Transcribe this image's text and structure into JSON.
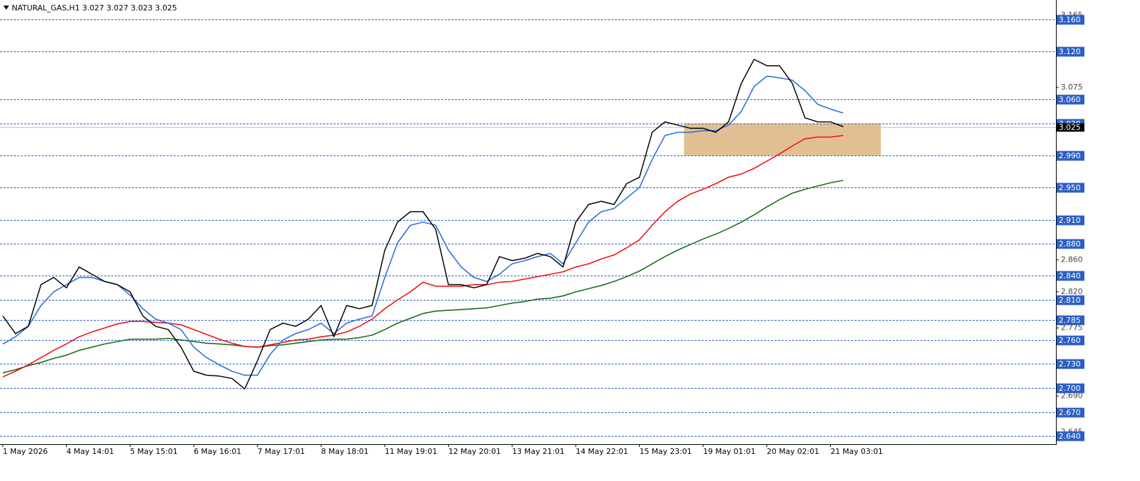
{
  "chart_data": {
    "type": "line",
    "title": "NATURAL_GAS,H1  3.027 3.027 3.023 3.025",
    "categories": [
      "1 May 2026",
      null,
      null,
      null,
      null,
      "4 May 14:01",
      null,
      null,
      null,
      null,
      "5 May 15:01",
      null,
      null,
      null,
      null,
      "6 May 16:01",
      null,
      null,
      null,
      null,
      "7 May 17:01",
      null,
      null,
      null,
      null,
      "8 May 18:01",
      null,
      null,
      null,
      null,
      "11 May 19:01",
      null,
      null,
      null,
      null,
      "12 May 20:01",
      null,
      null,
      null,
      null,
      "13 May 21:01",
      null,
      null,
      null,
      null,
      "14 May 22:01",
      null,
      null,
      null,
      null,
      "15 May 23:01",
      null,
      null,
      null,
      null,
      "19 May 01:01",
      null,
      null,
      null,
      null,
      "20 May 02:01",
      null,
      null,
      null,
      null,
      "21 May 03:01",
      null
    ],
    "series": [
      {
        "color": "#000000",
        "values": [
          2.79,
          2.768,
          2.777,
          2.829,
          2.838,
          2.825,
          2.851,
          2.842,
          2.833,
          2.829,
          2.82,
          2.79,
          2.777,
          2.773,
          2.751,
          2.721,
          2.716,
          2.715,
          2.712,
          2.699,
          2.734,
          2.773,
          2.781,
          2.777,
          2.786,
          2.803,
          2.764,
          2.803,
          2.799,
          2.803,
          2.872,
          2.907,
          2.92,
          2.92,
          2.898,
          2.829,
          2.829,
          2.825,
          2.829,
          2.864,
          2.859,
          2.862,
          2.868,
          2.864,
          2.851,
          2.907,
          2.929,
          2.933,
          2.929,
          2.955,
          2.963,
          3.019,
          3.032,
          3.028,
          3.024,
          3.024,
          3.019,
          3.032,
          3.08,
          3.11,
          3.102,
          3.102,
          3.08,
          3.037,
          3.032,
          3.032,
          3.026
        ]
      },
      {
        "color": "#2f6fdc",
        "values": [
          2.755,
          2.764,
          2.777,
          2.803,
          2.82,
          2.829,
          2.838,
          2.838,
          2.833,
          2.829,
          2.816,
          2.799,
          2.786,
          2.781,
          2.773,
          2.751,
          2.738,
          2.729,
          2.721,
          2.716,
          2.716,
          2.742,
          2.76,
          2.768,
          2.773,
          2.781,
          2.768,
          2.781,
          2.786,
          2.79,
          2.838,
          2.881,
          2.903,
          2.907,
          2.903,
          2.872,
          2.851,
          2.838,
          2.833,
          2.842,
          2.855,
          2.859,
          2.864,
          2.868,
          2.855,
          2.881,
          2.907,
          2.92,
          2.924,
          2.937,
          2.95,
          2.985,
          3.015,
          3.019,
          3.019,
          3.021,
          3.021,
          3.028,
          3.045,
          3.076,
          3.089,
          3.087,
          3.084,
          3.071,
          3.054,
          3.048,
          3.043
        ]
      },
      {
        "color": "#ee1111",
        "values": [
          2.714,
          2.721,
          2.729,
          2.738,
          2.747,
          2.755,
          2.764,
          2.77,
          2.775,
          2.78,
          2.783,
          2.783,
          2.782,
          2.781,
          2.779,
          2.773,
          2.767,
          2.761,
          2.756,
          2.752,
          2.751,
          2.754,
          2.757,
          2.76,
          2.761,
          2.764,
          2.766,
          2.77,
          2.777,
          2.786,
          2.799,
          2.81,
          2.82,
          2.832,
          2.827,
          2.827,
          2.827,
          2.829,
          2.829,
          2.832,
          2.833,
          2.836,
          2.839,
          2.842,
          2.845,
          2.851,
          2.855,
          2.861,
          2.866,
          2.875,
          2.885,
          2.903,
          2.92,
          2.933,
          2.942,
          2.948,
          2.955,
          2.963,
          2.967,
          2.974,
          2.983,
          2.992,
          3.002,
          3.011,
          3.013,
          3.013,
          3.015
        ]
      },
      {
        "color": "#1a6b1a",
        "values": [
          2.719,
          2.723,
          2.728,
          2.732,
          2.737,
          2.741,
          2.747,
          2.751,
          2.755,
          2.758,
          2.761,
          2.761,
          2.761,
          2.762,
          2.76,
          2.758,
          2.756,
          2.755,
          2.754,
          2.752,
          2.751,
          2.753,
          2.754,
          2.756,
          2.758,
          2.76,
          2.761,
          2.761,
          2.763,
          2.766,
          2.773,
          2.781,
          2.787,
          2.793,
          2.796,
          2.797,
          2.798,
          2.799,
          2.8,
          2.803,
          2.806,
          2.808,
          2.811,
          2.812,
          2.815,
          2.82,
          2.824,
          2.828,
          2.833,
          2.839,
          2.846,
          2.855,
          2.864,
          2.872,
          2.879,
          2.886,
          2.892,
          2.899,
          2.907,
          2.916,
          2.926,
          2.935,
          2.943,
          2.948,
          2.952,
          2.956,
          2.959
        ]
      }
    ],
    "ylim": [
      2.63,
      3.184
    ],
    "yticks": [
      3.165,
      3.075,
      {
        "value": 2.86,
        "label": "2.860"
      },
      {
        "value": 2.82,
        "label": "2.820"
      },
      2.775,
      {
        "value": 2.69,
        "label": "2.690"
      },
      2.645
    ],
    "levels": [
      {
        "value": 3.16,
        "label": "3.160"
      },
      {
        "value": 3.12,
        "label": "3.120"
      },
      {
        "value": 3.06,
        "label": "3.060"
      },
      {
        "value": 3.03,
        "label": "3.030"
      },
      {
        "value": 2.99,
        "label": "2.990"
      },
      {
        "value": 2.95,
        "label": "2.950"
      },
      {
        "value": 2.91,
        "label": "2.910"
      },
      {
        "value": 2.88,
        "label": "2.880"
      },
      {
        "value": 2.84,
        "label": "2.840"
      },
      {
        "value": 2.81,
        "label": "2.810"
      },
      2.785,
      {
        "value": 2.76,
        "label": "2.760"
      },
      {
        "value": 2.73,
        "label": "2.730"
      },
      {
        "value": 2.7,
        "label": "2.700"
      },
      {
        "value": 2.67,
        "label": "2.670"
      },
      {
        "value": 2.64,
        "label": "2.640"
      }
    ],
    "level_color": "#2d5fc4",
    "current_price": 3.025,
    "zone": {
      "from": 2.99,
      "to": 3.03,
      "color": "#deb887"
    }
  }
}
